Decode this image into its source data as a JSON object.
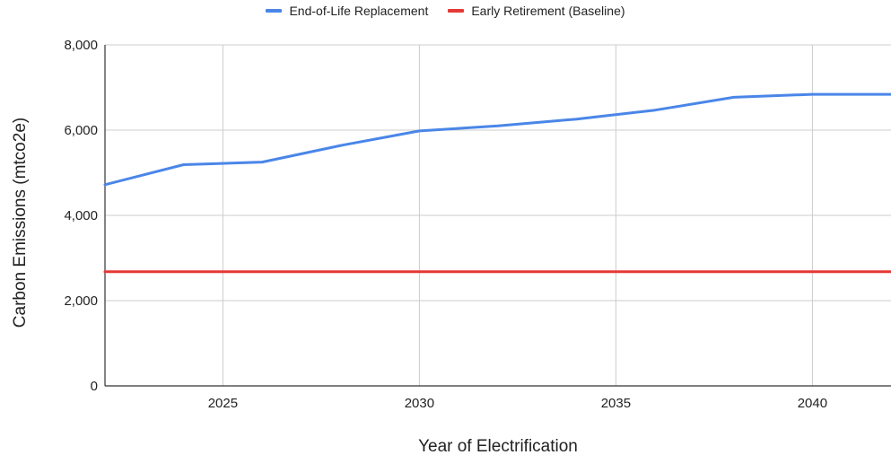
{
  "chart_data": {
    "type": "line",
    "title": "",
    "xlabel": "Year of Electrification",
    "ylabel": "Carbon Emissions (mtco2e)",
    "xlim": [
      2022,
      2042
    ],
    "ylim": [
      0,
      8000
    ],
    "x_ticks": [
      "2025",
      "2030",
      "2035",
      "2040"
    ],
    "y_ticks": [
      "0",
      "2,000",
      "4,000",
      "6,000",
      "8,000"
    ],
    "grid": true,
    "legend_position": "top-center",
    "series": [
      {
        "name": "End-of-Life Replacement",
        "color": "#4a86e8",
        "x": [
          2022,
          2024,
          2026,
          2028,
          2030,
          2032,
          2034,
          2036,
          2038,
          2040,
          2042
        ],
        "y": [
          4720,
          5190,
          5250,
          5640,
          5980,
          6100,
          6260,
          6470,
          6770,
          6840,
          6840
        ]
      },
      {
        "name": "Early Retirement (Baseline)",
        "color": "#e53935",
        "x": [
          2022,
          2042
        ],
        "y": [
          2680,
          2680
        ]
      }
    ]
  }
}
